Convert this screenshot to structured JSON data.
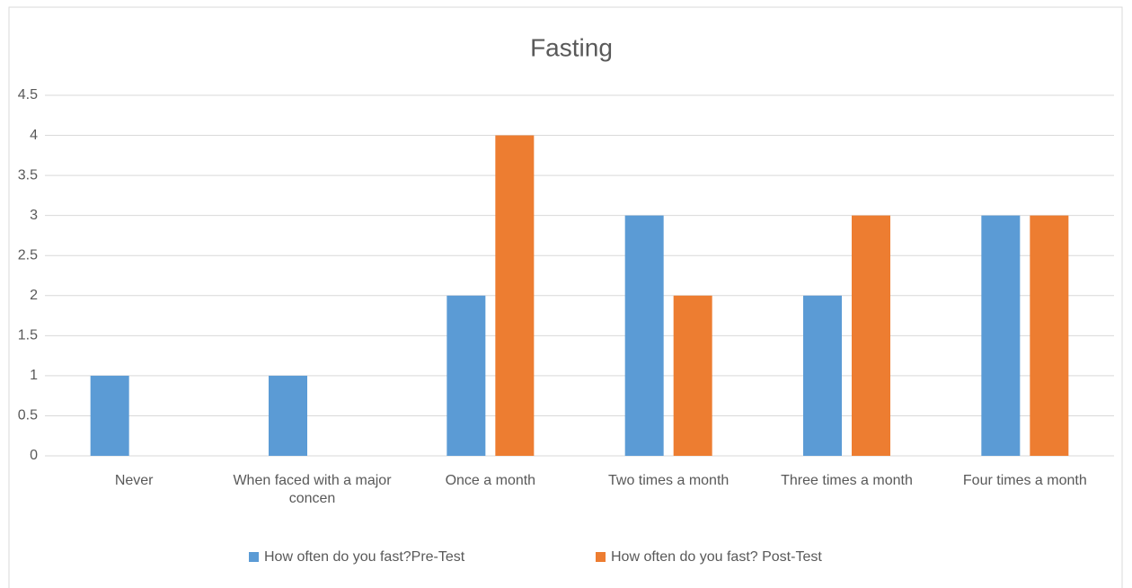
{
  "chart_data": {
    "type": "bar",
    "title": "Fasting",
    "categories": [
      "Never",
      "When faced with a major concen",
      "Once a month",
      "Two times a month",
      "Three times a month",
      "Four times a month"
    ],
    "series": [
      {
        "name": "How often do you fast?Pre-Test",
        "color": "#5b9bd5",
        "values": [
          1,
          1,
          2,
          3,
          2,
          3
        ]
      },
      {
        "name": "How often do you fast? Post-Test",
        "color": "#ed7d31",
        "values": [
          0,
          0,
          4,
          2,
          3,
          3
        ]
      }
    ],
    "ylim": [
      0,
      4.5
    ],
    "yticks": [
      0,
      0.5,
      1,
      1.5,
      2,
      2.5,
      3,
      3.5,
      4,
      4.5
    ],
    "grid": true,
    "legend": "bottom"
  }
}
